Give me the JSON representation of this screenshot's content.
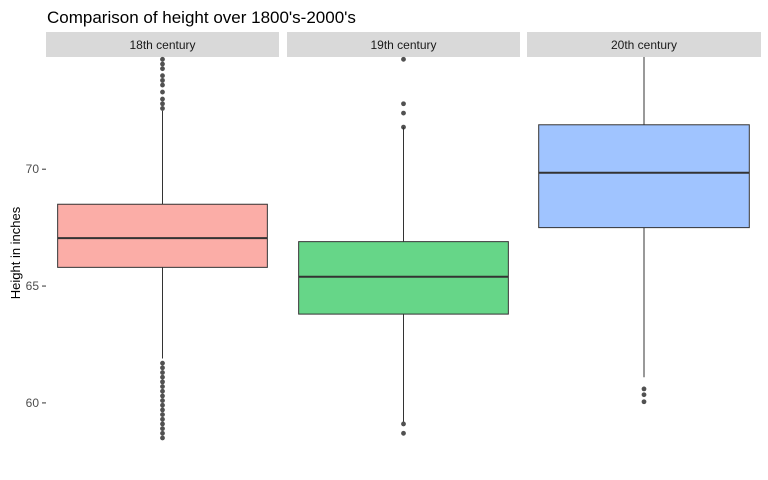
{
  "chart_data": {
    "type": "boxplot",
    "title": "Comparison of height over 1800's-2000's",
    "xlabel": "",
    "ylabel": "Height in inches",
    "ylim": [
      57.9,
      74.8
    ],
    "y_ticks": [
      60,
      65,
      70
    ],
    "grid": false,
    "legend": "none",
    "facets": [
      {
        "label": "18th century",
        "fill": "#F8766D",
        "box": {
          "lower_whisker": 61.9,
          "q1": 65.8,
          "median": 67.05,
          "q3": 68.5,
          "upper_whisker": 72.5
        },
        "outliers": [
          58.5,
          58.7,
          58.9,
          59.1,
          59.3,
          59.5,
          59.7,
          59.9,
          60.1,
          60.3,
          60.5,
          60.7,
          60.9,
          61.1,
          61.3,
          61.5,
          61.7,
          72.6,
          72.8,
          73.0,
          73.3,
          73.6,
          73.8,
          74.0,
          74.3,
          74.5,
          74.7
        ]
      },
      {
        "label": "19th century",
        "fill": "#00BA38",
        "box": {
          "lower_whisker": 59.2,
          "q1": 63.8,
          "median": 65.4,
          "q3": 66.9,
          "upper_whisker": 71.8
        },
        "outliers": [
          58.7,
          59.1,
          71.8,
          72.4,
          72.8,
          74.7
        ]
      },
      {
        "label": "20th century",
        "fill": "#619CFF",
        "box": {
          "lower_whisker": 61.1,
          "q1": 67.5,
          "median": 69.85,
          "q3": 71.9,
          "upper_whisker": 74.8
        },
        "outliers": [
          60.05,
          60.35,
          60.6
        ]
      }
    ]
  }
}
